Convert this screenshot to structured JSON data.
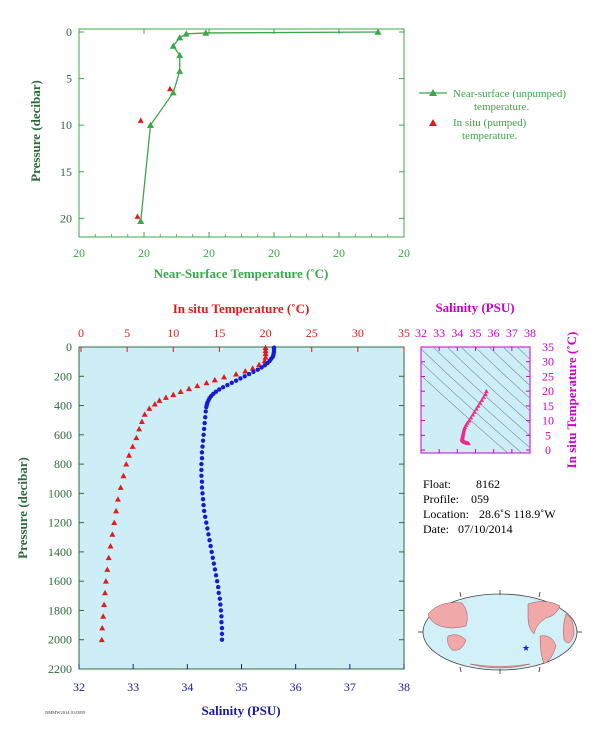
{
  "colors": {
    "green": "#3aa84a",
    "axis_green": "#2e6b3a",
    "red": "#e01b1b",
    "blue": "#1a1ad6",
    "magenta": "#cc00cc",
    "pink": "#ee2a88",
    "panel_bg": "#cdeef6",
    "dark_blue": "#1a1aa0"
  },
  "chart_data": [
    {
      "type": "line",
      "xlabel": "Near-Surface Temperature (˚C)",
      "ylabel": "Pressure (decibar)",
      "x_tick_labels": [
        "20",
        "20",
        "20",
        "20",
        "20",
        "20"
      ],
      "y_ticks": [
        0,
        5,
        10,
        15,
        20
      ],
      "ylim": [
        0,
        22
      ],
      "y_inverted": true,
      "legend": [
        {
          "name": "Near-surface (unpumped)",
          "name2": "temperature.",
          "marker": "triangle"
        },
        {
          "name": "In situ (pumped)",
          "name2": "temperature.",
          "marker": "triangle"
        }
      ],
      "series": [
        {
          "name": "Near-surface (unpumped)",
          "points": [
            [
              20.72,
              0.0
            ],
            [
              20.19,
              0.1
            ],
            [
              20.13,
              0.2
            ],
            [
              20.11,
              0.6
            ],
            [
              20.09,
              1.5
            ],
            [
              20.11,
              2.5
            ],
            [
              20.11,
              4.2
            ],
            [
              20.09,
              6.5
            ],
            [
              20.02,
              10.0
            ],
            [
              19.99,
              20.3
            ]
          ]
        },
        {
          "name": "In situ (pumped)",
          "points": [
            [
              20.08,
              6.1
            ],
            [
              19.99,
              9.5
            ],
            [
              19.98,
              19.8
            ]
          ]
        }
      ]
    },
    {
      "type": "scatter",
      "top_xlabel": "In situ Temperature (˚C)",
      "top_x_ticks": [
        0,
        5,
        10,
        15,
        20,
        25,
        30,
        35
      ],
      "bottom_xlabel": "Salinity (PSU)",
      "bottom_x_ticks": [
        32,
        33,
        34,
        35,
        36,
        37,
        38
      ],
      "ylabel": "Pressure (decibar)",
      "y_ticks": [
        0,
        200,
        400,
        600,
        800,
        1000,
        1200,
        1400,
        1600,
        1800,
        2000,
        2200
      ],
      "ylim": [
        0,
        2200
      ],
      "y_inverted": true,
      "series": [
        {
          "name": "In situ Temperature",
          "pressure": [
            5,
            25,
            45,
            70,
            95,
            120,
            145,
            165,
            185,
            205,
            225,
            245,
            265,
            285,
            305,
            325,
            345,
            365,
            390,
            420,
            460,
            510,
            560,
            620,
            680,
            740,
            800,
            880,
            960,
            1040,
            1120,
            1200,
            1280,
            1360,
            1440,
            1520,
            1600,
            1680,
            1760,
            1840,
            1920,
            2000
          ],
          "temperature": [
            20.0,
            20.0,
            20.0,
            20.0,
            19.9,
            19.3,
            18.6,
            17.8,
            16.8,
            15.5,
            14.5,
            13.6,
            12.6,
            11.7,
            10.8,
            10.0,
            9.2,
            8.5,
            8.0,
            7.4,
            6.9,
            6.6,
            6.3,
            6.0,
            5.6,
            5.2,
            4.9,
            4.6,
            4.3,
            4.0,
            3.8,
            3.6,
            3.4,
            3.2,
            3.0,
            2.85,
            2.7,
            2.6,
            2.5,
            2.4,
            2.3,
            2.25
          ]
        },
        {
          "name": "Salinity",
          "pressure": [
            5,
            20,
            35,
            50,
            65,
            80,
            95,
            110,
            125,
            140,
            155,
            170,
            185,
            200,
            215,
            230,
            245,
            260,
            275,
            290,
            305,
            320,
            335,
            350,
            365,
            380,
            395,
            410,
            440,
            480,
            520,
            560,
            600,
            640,
            680,
            720,
            760,
            800,
            840,
            880,
            920,
            960,
            1000,
            1040,
            1080,
            1120,
            1160,
            1200,
            1240,
            1280,
            1320,
            1360,
            1400,
            1440,
            1480,
            1520,
            1560,
            1600,
            1640,
            1680,
            1720,
            1760,
            1800,
            1840,
            1880,
            1920,
            1960,
            2000
          ],
          "salinity": [
            35.6,
            35.6,
            35.6,
            35.59,
            35.58,
            35.55,
            35.52,
            35.48,
            35.43,
            35.37,
            35.3,
            35.22,
            35.14,
            35.06,
            34.98,
            34.9,
            34.82,
            34.74,
            34.66,
            34.59,
            34.53,
            34.48,
            34.44,
            34.41,
            34.39,
            34.37,
            34.36,
            34.35,
            34.34,
            34.33,
            34.32,
            34.31,
            34.3,
            34.29,
            34.28,
            34.27,
            34.27,
            34.26,
            34.26,
            34.26,
            34.27,
            34.27,
            34.28,
            34.29,
            34.3,
            34.31,
            34.33,
            34.35,
            34.37,
            34.39,
            34.41,
            34.43,
            34.45,
            34.47,
            34.49,
            34.51,
            34.53,
            34.55,
            34.57,
            34.58,
            34.6,
            34.61,
            34.62,
            34.63,
            34.63,
            34.64,
            34.64,
            34.64
          ]
        }
      ]
    },
    {
      "type": "scatter",
      "top_xlabel": "Salinity (PSU)",
      "x_ticks": [
        32,
        33,
        34,
        35,
        36,
        37,
        38
      ],
      "ylabel": "In situ Temperature (˚C)",
      "y_ticks": [
        0,
        5,
        10,
        15,
        20,
        25,
        30,
        35
      ],
      "xlim": [
        32,
        38
      ],
      "ylim": [
        -1,
        35
      ],
      "series": [
        {
          "name": "T-S",
          "salinity": [
            35.6,
            35.55,
            35.45,
            35.35,
            35.25,
            35.15,
            35.05,
            34.95,
            34.85,
            34.75,
            34.65,
            34.55,
            34.48,
            34.42,
            34.38,
            34.36,
            34.34,
            34.32,
            34.3,
            34.29,
            34.28,
            34.27,
            34.26,
            34.27,
            34.29,
            34.32,
            34.36,
            34.4,
            34.45,
            34.5,
            34.56,
            34.62
          ],
          "temperature": [
            20.0,
            19.0,
            18.0,
            17.0,
            16.0,
            15.0,
            14.0,
            13.0,
            12.0,
            11.0,
            10.0,
            9.2,
            8.5,
            7.8,
            7.2,
            6.6,
            6.0,
            5.5,
            5.0,
            4.6,
            4.3,
            4.0,
            3.7,
            3.5,
            3.3,
            3.1,
            2.9,
            2.7,
            2.6,
            2.5,
            2.4,
            2.3
          ]
        }
      ]
    }
  ],
  "info": {
    "float_label": "Float:",
    "float_value": "8162",
    "profile_label": "Profile:",
    "profile_value": "059",
    "location_label": "Location:",
    "location_value": "28.6˚S  118.9˚W",
    "date_label": "Date:",
    "date_value": "07/10/2014"
  },
  "footer_code": "NMMW2014 01/0059"
}
